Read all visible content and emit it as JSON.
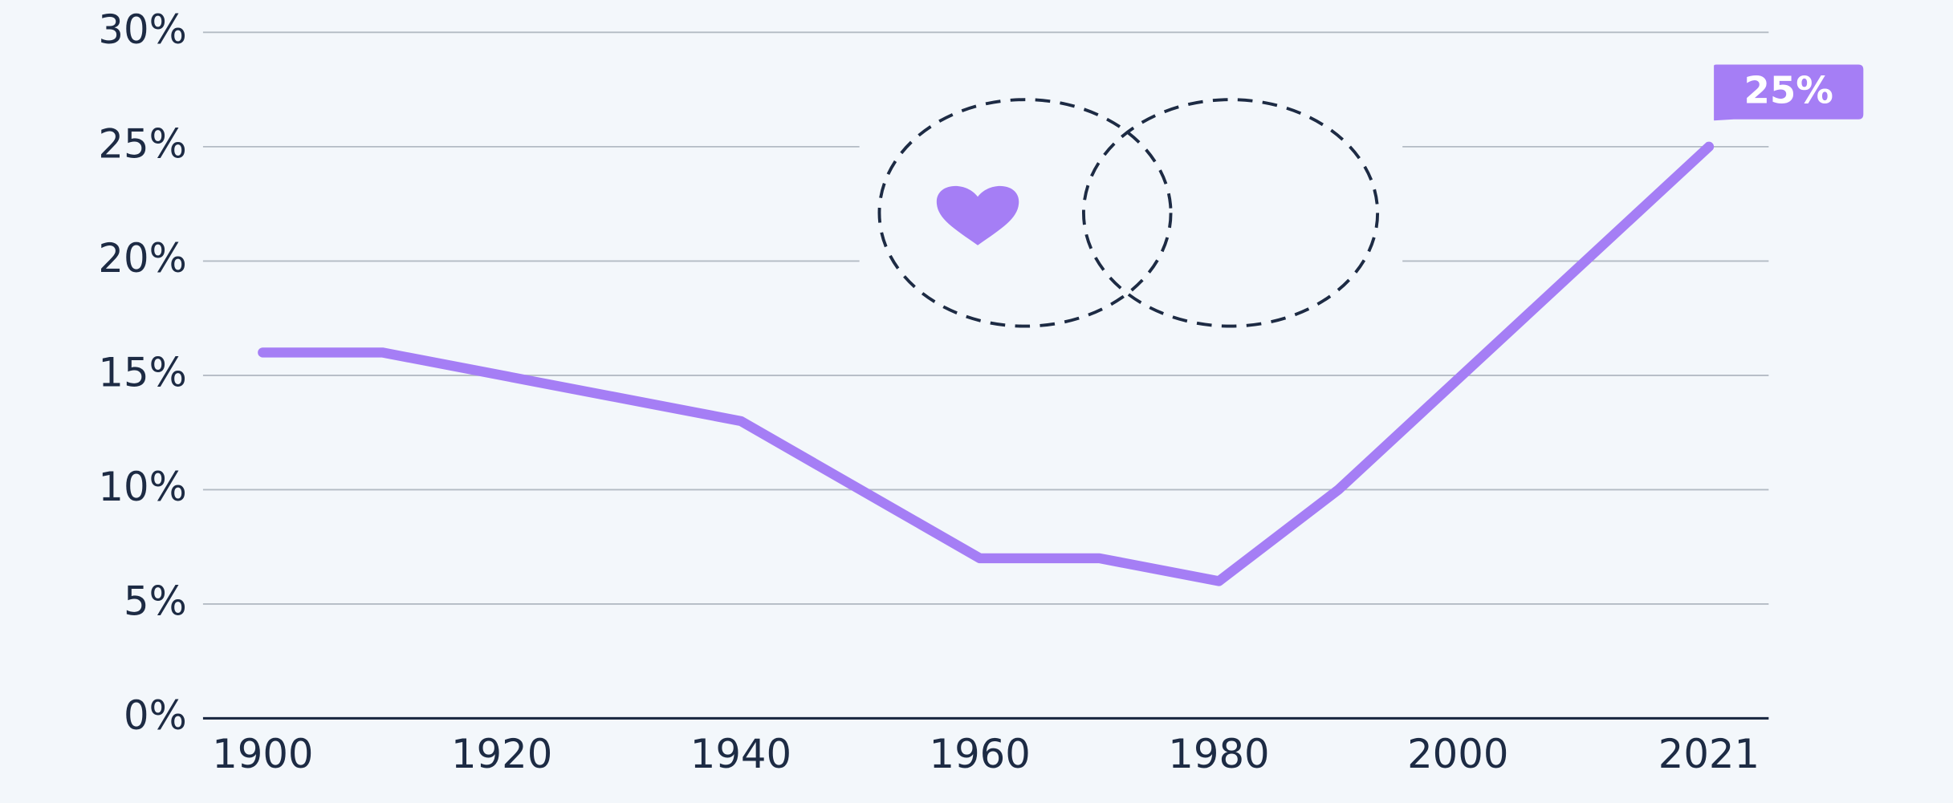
{
  "chart_data": {
    "type": "line",
    "x": [
      1900,
      1910,
      1940,
      1960,
      1970,
      1980,
      1990,
      2021
    ],
    "series": [
      {
        "color": "#a57ef5",
        "values": [
          16,
          16,
          13,
          7,
          7,
          6,
          10,
          25
        ],
        "value_labels": [
          null,
          null,
          null,
          null,
          null,
          null,
          null,
          "25%"
        ]
      }
    ],
    "xlim": [
      1895,
      2026
    ],
    "xticks": [
      1900,
      1920,
      1940,
      1960,
      1980,
      2000,
      2021
    ],
    "ylim": [
      0,
      30
    ],
    "yticks": [
      {
        "value": 0,
        "label": "0%"
      },
      {
        "value": 5,
        "label": "5%"
      },
      {
        "value": 10,
        "label": "10%"
      },
      {
        "value": 15,
        "label": "15%"
      },
      {
        "value": 20,
        "label": "20%"
      },
      {
        "value": 25,
        "label": "25%"
      },
      {
        "value": 30,
        "label": "30%"
      }
    ],
    "grid": true
  }
}
